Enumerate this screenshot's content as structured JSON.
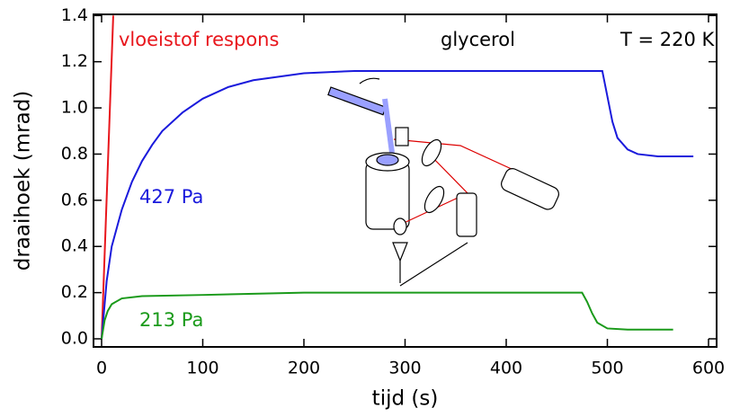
{
  "chart_data": {
    "type": "line",
    "xlabel": "tijd (s)",
    "ylabel": "draaihoek (mrad)",
    "annotations": [
      "glycerol",
      "T = 220 K"
    ],
    "xlim": [
      -8,
      608
    ],
    "ylim": [
      -0.035,
      1.405
    ],
    "xticks": [
      0,
      100,
      200,
      300,
      400,
      500,
      600
    ],
    "yticks": [
      {
        "value": 0,
        "label": "0.0"
      },
      0.2,
      0.4,
      0.6,
      0.8,
      {
        "value": 1,
        "label": "1.0"
      },
      1.2,
      1.4
    ],
    "series": [
      {
        "name": "vloeistof respons",
        "color": "#e8161c",
        "x": [
          0,
          11.5
        ],
        "values": [
          0,
          1.4
        ]
      },
      {
        "name": "427 Pa",
        "color": "#1a1adc",
        "x": [
          0,
          5,
          10,
          20,
          30,
          40,
          50,
          60,
          80,
          100,
          125,
          150,
          200,
          250,
          300,
          400,
          495,
          500,
          505,
          510,
          520,
          530,
          550,
          585
        ],
        "values": [
          0,
          0.25,
          0.4,
          0.56,
          0.68,
          0.77,
          0.84,
          0.9,
          0.98,
          1.04,
          1.09,
          1.12,
          1.15,
          1.16,
          1.16,
          1.16,
          1.16,
          1.05,
          0.94,
          0.87,
          0.82,
          0.8,
          0.79,
          0.79
        ]
      },
      {
        "name": "213 Pa",
        "color": "#1a9a1a",
        "x": [
          0,
          3,
          6,
          10,
          20,
          40,
          100,
          200,
          300,
          400,
          475,
          480,
          485,
          490,
          500,
          520,
          565
        ],
        "values": [
          0,
          0.08,
          0.12,
          0.15,
          0.175,
          0.185,
          0.19,
          0.2,
          0.2,
          0.2,
          0.2,
          0.16,
          0.11,
          0.07,
          0.045,
          0.04,
          0.04
        ]
      }
    ]
  }
}
